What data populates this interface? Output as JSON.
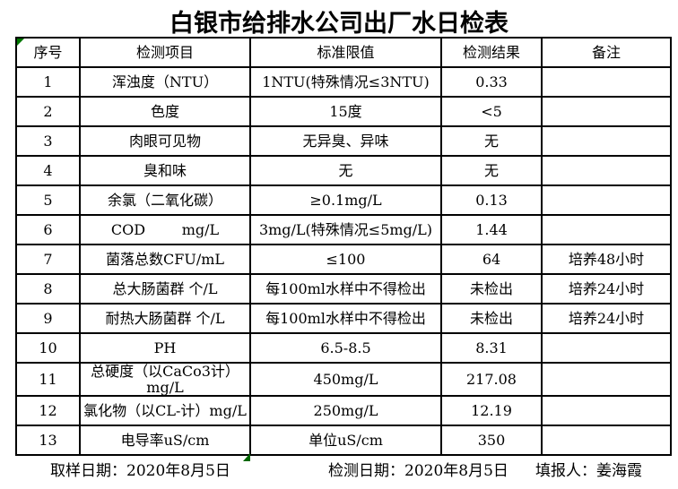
{
  "title": "白银市给排水公司出厂水日检表",
  "table": {
    "headers": [
      "序号",
      "检测项目",
      "标准限值",
      "检测结果",
      "备注"
    ],
    "rows": [
      {
        "no": "1",
        "item": "浑浊度（NTU）",
        "limit": "1NTU(特殊情况≤3NTU)",
        "result": "0.33",
        "note": ""
      },
      {
        "no": "2",
        "item": "色度",
        "limit": "15度",
        "result": "<5",
        "note": ""
      },
      {
        "no": "3",
        "item": "肉眼可见物",
        "limit": "无异臭、异味",
        "result": "无",
        "note": ""
      },
      {
        "no": "4",
        "item": "臭和味",
        "limit": "无",
        "result": "无",
        "note": ""
      },
      {
        "no": "5",
        "item": "余氯（二氧化碳）",
        "limit": "≥0.1mg/L",
        "result": "0.13",
        "note": ""
      },
      {
        "no": "6",
        "item": "COD        mg/L",
        "limit": "3mg/L(特殊情况≤5mg/L)",
        "result": "1.44",
        "note": ""
      },
      {
        "no": "7",
        "item": "菌落总数CFU/mL",
        "limit": "≤100",
        "result": "64",
        "note": "培养48小时"
      },
      {
        "no": "8",
        "item": "总大肠菌群 个/L",
        "limit": "每100ml水样中不得检出",
        "result": "未检出",
        "note": "培养24小时"
      },
      {
        "no": "9",
        "item": "耐热大肠菌群 个/L",
        "limit": "每100ml水样中不得检出",
        "result": "未检出",
        "note": "培养24小时"
      },
      {
        "no": "10",
        "item": "PH",
        "limit": "6.5-8.5",
        "result": "8.31",
        "note": ""
      },
      {
        "no": "11",
        "item": "总硬度（以CaCo3计）mg/L",
        "limit": "450mg/L",
        "result": "217.08",
        "note": ""
      },
      {
        "no": "12",
        "item": "氯化物（以CL-计）mg/L",
        "limit": "250mg/L",
        "result": "12.19",
        "note": ""
      },
      {
        "no": "13",
        "item": "电导率uS/cm",
        "limit": "单位uS/cm",
        "result": "350",
        "note": ""
      }
    ]
  },
  "footer": {
    "sampling": "取样日期：2020年8月5日",
    "testing": "检测日期：2020年8月5日",
    "reporter": "填报人：姜海霞"
  },
  "icons": {
    "corner_marker": "excel-green-corner-triangle",
    "bottom_marker": "excel-green-bottom-triangle"
  },
  "colors": {
    "marker_green": "#007700",
    "border": "#000000",
    "background": "#ffffff"
  }
}
